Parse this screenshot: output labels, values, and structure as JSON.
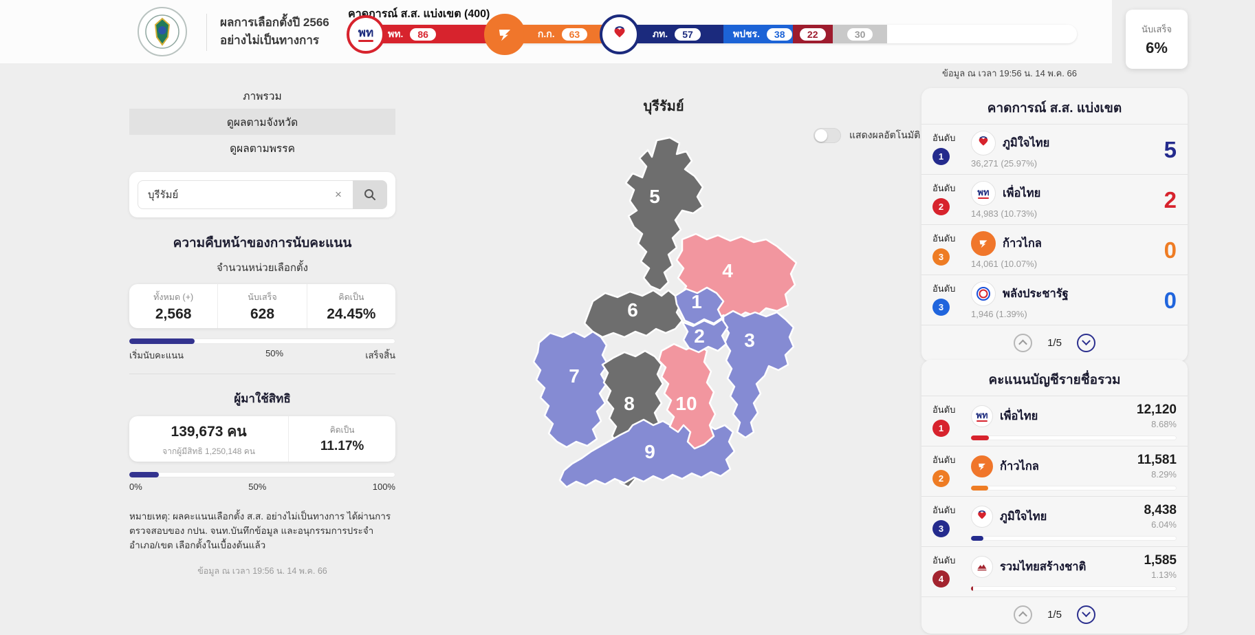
{
  "header": {
    "title_line1": "ผลการเลือกตั้งปี 2566",
    "title_line2": "อย่างไม่เป็นทางการ",
    "bar_title": "คาดการณ์ ส.ส. แบ่งเขต (400)",
    "updated_at": "ข้อมูล ณ เวลา 19:56 น. 14 พ.ค. 66",
    "counted_card": {
      "label": "นับเสร็จ",
      "value": "6%"
    },
    "seat_bar": {
      "total_label": "400",
      "segments": [
        {
          "abbr": "พท.",
          "seats": "86",
          "width_pct": 21.5,
          "color": "#d7232d",
          "logo_text": "พท"
        },
        {
          "abbr": "ก.ก.",
          "seats": "63",
          "width_pct": 15.75,
          "color": "#f0762b"
        },
        {
          "abbr": "ภท.",
          "seats": "57",
          "width_pct": 14.25,
          "color": "#1b2a7d"
        },
        {
          "abbr": "พปชร.",
          "seats": "38",
          "width_pct": 9.5,
          "color": "#1c63d6"
        },
        {
          "abbr": "",
          "seats": "22",
          "width_pct": 5.5,
          "color": "#9e1c2e"
        },
        {
          "abbr": "",
          "seats": "30",
          "width_pct": 7.5,
          "color": "#c9c9c9",
          "pill_text_color": "#9b9b9b"
        }
      ]
    }
  },
  "sidebar": {
    "tabs": [
      {
        "label": "ภาพรวม"
      },
      {
        "label": "ดูผลตามจังหวัด"
      },
      {
        "label": "ดูผลตามพรรค"
      }
    ],
    "search": {
      "value": "บุรีรัมย์"
    },
    "counting": {
      "title": "ความคืบหน้าของการนับคะแนน",
      "subtitle": "จำนวนหน่วยเลือกตั้ง",
      "stats": [
        {
          "label": "ทั้งหมด (+)",
          "value": "2,568"
        },
        {
          "label": "นับเสร็จ",
          "value": "628"
        },
        {
          "label": "คิดเป็น",
          "value": "24.45%"
        }
      ],
      "progress_pct": 24.45,
      "scale": [
        "เริ่มนับคะแนน",
        "50%",
        "เสร็จสิ้น"
      ]
    },
    "turnout": {
      "title": "ผู้มาใช้สิทธิ",
      "count": "139,673 คน",
      "of_total": "จากผู้มีสิทธิ 1,250,148 คน",
      "pct_label": "คิดเป็น",
      "pct": "11.17%",
      "progress_pct": 11.17,
      "scale": [
        "0%",
        "50%",
        "100%"
      ]
    },
    "note": "หมายเหตุ: ผลคะแนนเลือกตั้ง ส.ส. อย่างไม่เป็นทางการ ได้ผ่านการตรวจสอบของ กปน. จนท.บันทึกข้อมูล และอนุกรรมการประจำอำเภอ/เขต เลือกตั้งในเบื้องต้นแล้ว",
    "updated_at": "ข้อมูล ณ เวลา 19:56 น. 14 พ.ค. 66"
  },
  "map": {
    "title": "บุรีรัมย์",
    "auto_toggle_label": "แสดงผลอัตโนมัติ",
    "auto_toggle_on": false,
    "legend_colors": {
      "leading_purple": "#858bd3",
      "leading_pink": "#f2969f",
      "no_result_gray": "#6e6e6e"
    },
    "districts": [
      {
        "number": "1",
        "color": "#858bd3"
      },
      {
        "number": "2",
        "color": "#858bd3"
      },
      {
        "number": "3",
        "color": "#858bd3"
      },
      {
        "number": "4",
        "color": "#f2969f"
      },
      {
        "number": "5",
        "color": "#6e6e6e"
      },
      {
        "number": "6",
        "color": "#6e6e6e"
      },
      {
        "number": "7",
        "color": "#858bd3"
      },
      {
        "number": "8",
        "color": "#6e6e6e"
      },
      {
        "number": "9",
        "color": "#858bd3"
      },
      {
        "number": "10",
        "color": "#f2969f"
      }
    ]
  },
  "panels": {
    "constituency": {
      "title": "คาดการณ์ ส.ส. แบ่งเขต",
      "rows": [
        {
          "rank_label": "อันดับ",
          "rank": "1",
          "party": "ภูมิใจไทย",
          "votes": "36,271  (25.97%)",
          "seats": "5",
          "color": "#242b8d",
          "logo_text": ""
        },
        {
          "rank_label": "อันดับ",
          "rank": "2",
          "party": "เพื่อไทย",
          "votes": "14,983  (10.73%)",
          "seats": "2",
          "color": "#d7232d",
          "logo_text": "พท"
        },
        {
          "rank_label": "อันดับ",
          "rank": "3",
          "party": "ก้าวไกล",
          "votes": "14,061  (10.07%)",
          "seats": "0",
          "color": "#ee7c24",
          "logo_text": ""
        },
        {
          "rank_label": "อันดับ",
          "rank": "3",
          "party": "พลังประชารัฐ",
          "votes": "1,946  (1.39%)",
          "seats": "0",
          "color": "#2065dd",
          "logo_text": ""
        }
      ],
      "pagination": "1/5"
    },
    "party_list": {
      "title": "คะแนนบัญชีรายชื่อรวม",
      "rows": [
        {
          "rank_label": "อันดับ",
          "rank": "1",
          "party": "เพื่อไทย",
          "votes": "12,120",
          "pct": "8.68%",
          "pct_value": 8.68,
          "color": "#d7232d",
          "logo_text": "พท"
        },
        {
          "rank_label": "อันดับ",
          "rank": "2",
          "party": "ก้าวไกล",
          "votes": "11,581",
          "pct": "8.29%",
          "pct_value": 8.29,
          "color": "#ee7c24",
          "logo_text": ""
        },
        {
          "rank_label": "อันดับ",
          "rank": "3",
          "party": "ภูมิใจไทย",
          "votes": "8,438",
          "pct": "6.04%",
          "pct_value": 6.04,
          "color": "#242b8d",
          "logo_text": ""
        },
        {
          "rank_label": "อันดับ",
          "rank": "4",
          "party": "รวมไทยสร้างชาติ",
          "votes": "1,585",
          "pct": "1.13%",
          "pct_value": 1.13,
          "color": "#a3242f",
          "logo_text": ""
        }
      ],
      "pagination": "1/5"
    }
  }
}
